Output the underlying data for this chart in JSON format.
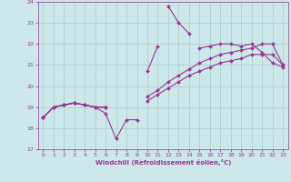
{
  "xlabel": "Windchill (Refroidissement éolien,°C)",
  "xlim": [
    -0.5,
    23.5
  ],
  "ylim": [
    17,
    24
  ],
  "yticks": [
    17,
    18,
    19,
    20,
    21,
    22,
    23,
    24
  ],
  "xticks": [
    0,
    1,
    2,
    3,
    4,
    5,
    6,
    7,
    8,
    9,
    10,
    11,
    12,
    13,
    14,
    15,
    16,
    17,
    18,
    19,
    20,
    21,
    22,
    23
  ],
  "bg_color": "#cce8e8",
  "grid_color": "#aacccc",
  "line_color": "#993399",
  "line_width": 0.8,
  "marker": "D",
  "marker_size": 2.0,
  "lines": [
    [
      18.5,
      19.0,
      19.1,
      19.2,
      19.1,
      19.0,
      18.7,
      17.5,
      18.4,
      18.4,
      null,
      null,
      23.8,
      23.0,
      22.5,
      null,
      null,
      null,
      null,
      null,
      null,
      null,
      null,
      null
    ],
    [
      18.5,
      19.0,
      19.1,
      19.2,
      19.1,
      19.0,
      19.0,
      null,
      null,
      null,
      20.7,
      21.9,
      null,
      null,
      null,
      21.8,
      21.9,
      22.0,
      22.0,
      21.9,
      22.0,
      21.6,
      21.1,
      20.9
    ],
    [
      18.5,
      19.0,
      19.1,
      19.2,
      19.1,
      19.0,
      19.0,
      null,
      null,
      null,
      19.5,
      19.8,
      20.2,
      20.5,
      20.8,
      21.1,
      21.3,
      21.5,
      21.6,
      21.7,
      21.8,
      22.0,
      22.0,
      21.0
    ],
    [
      18.5,
      19.0,
      19.1,
      19.2,
      19.1,
      19.0,
      19.0,
      null,
      null,
      null,
      19.3,
      19.6,
      19.9,
      20.2,
      20.5,
      20.7,
      20.9,
      21.1,
      21.2,
      21.3,
      21.5,
      21.5,
      21.5,
      21.0
    ]
  ]
}
